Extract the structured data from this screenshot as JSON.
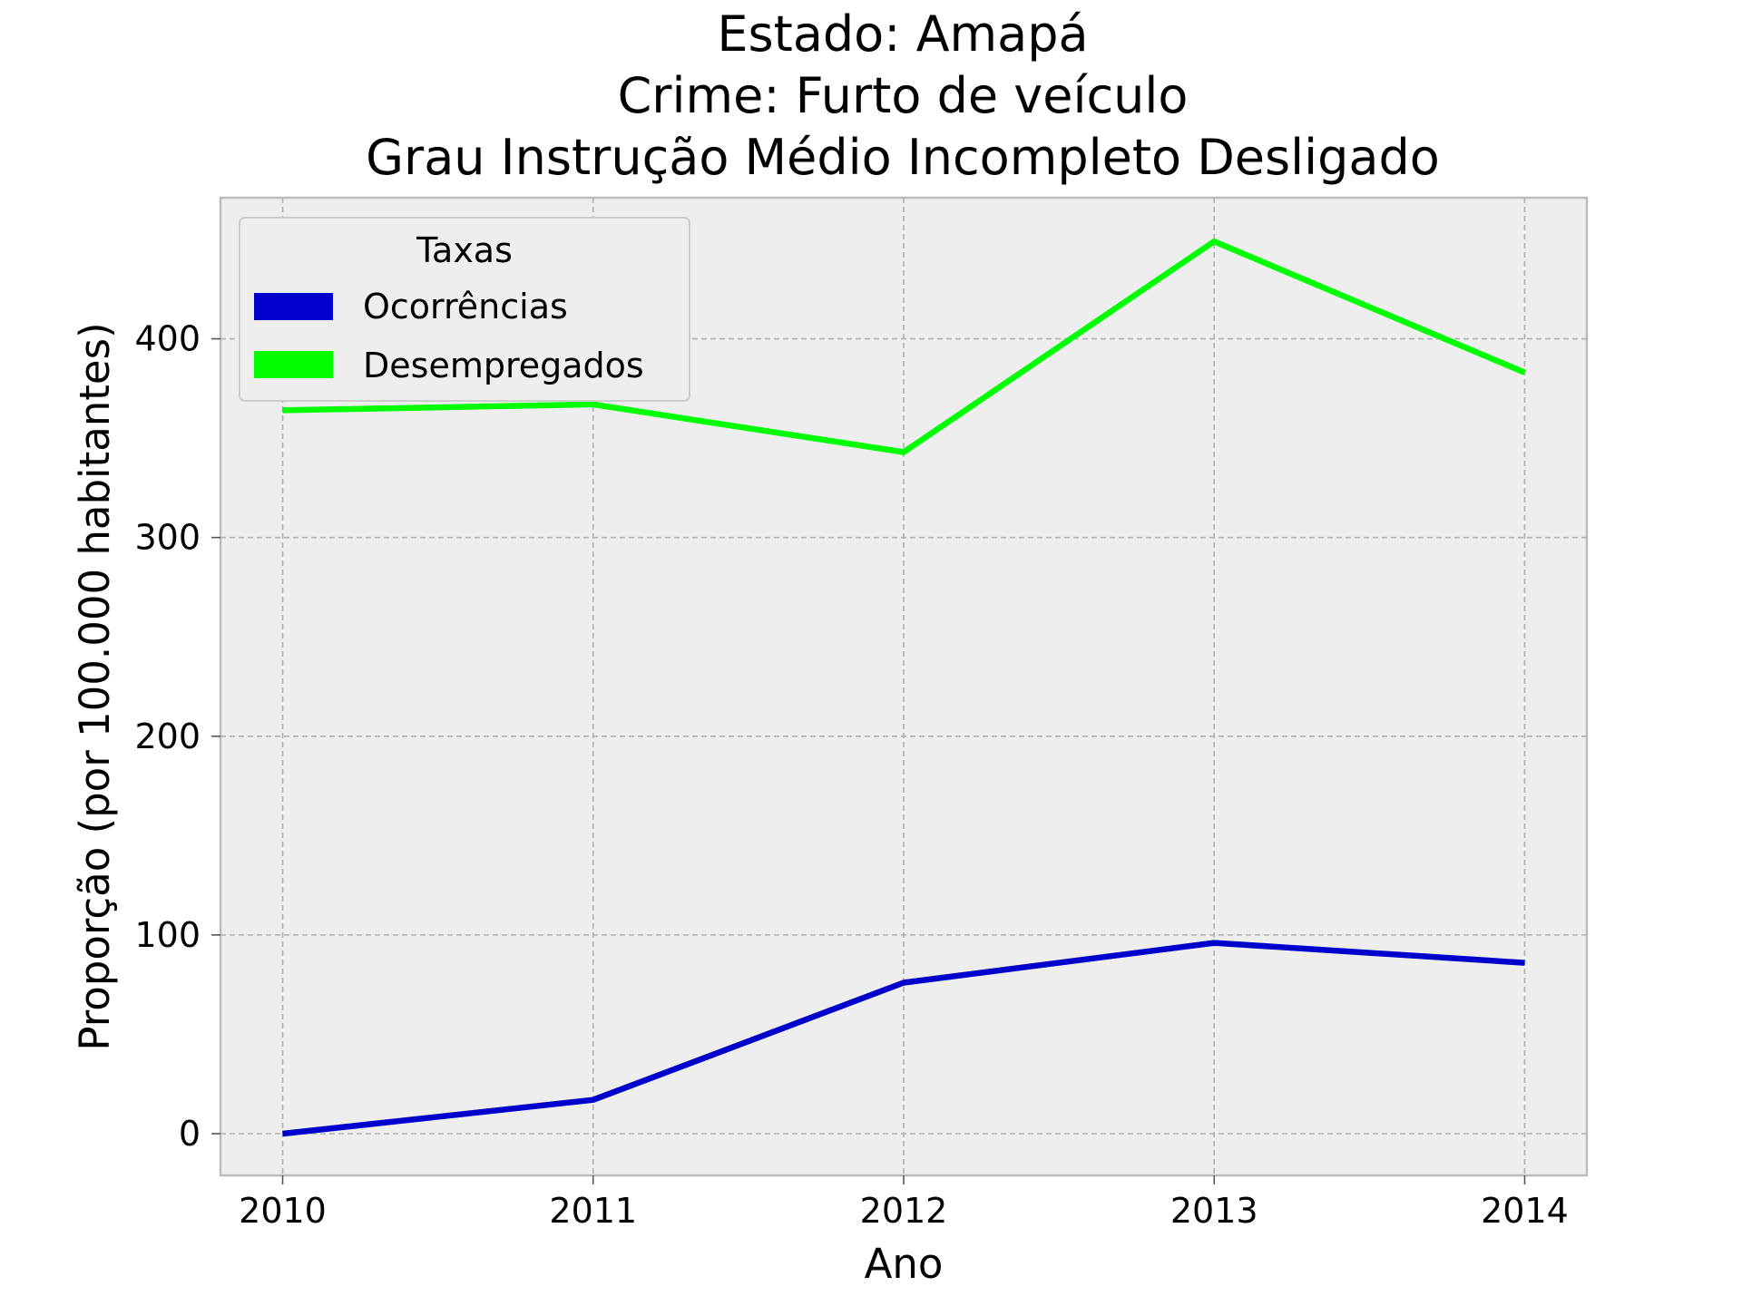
{
  "chart_data": {
    "type": "line",
    "title": [
      "Estado: Amapá",
      "Crime: Furto de veículo",
      "Grau Instrução  Médio Incompleto   Desligado"
    ],
    "xlabel": "Ano",
    "ylabel": "Proporção (por 100.000 habitantes)",
    "x": [
      2010,
      2011,
      2012,
      2013,
      2014
    ],
    "xticks": [
      "2010",
      "2011",
      "2012",
      "2013",
      "2014"
    ],
    "yticks": [
      "0",
      "100",
      "200",
      "300",
      "400"
    ],
    "ylim": [
      -21,
      471
    ],
    "grid": true,
    "legend": {
      "title": "Taxas",
      "position": "upper left"
    },
    "series": [
      {
        "name": "Ocorrências",
        "color": "#0000cc",
        "values": [
          0,
          17,
          76,
          96,
          86
        ]
      },
      {
        "name": "Desempregados",
        "color": "#00ff00",
        "values": [
          364,
          367,
          343,
          449,
          383
        ]
      }
    ]
  }
}
